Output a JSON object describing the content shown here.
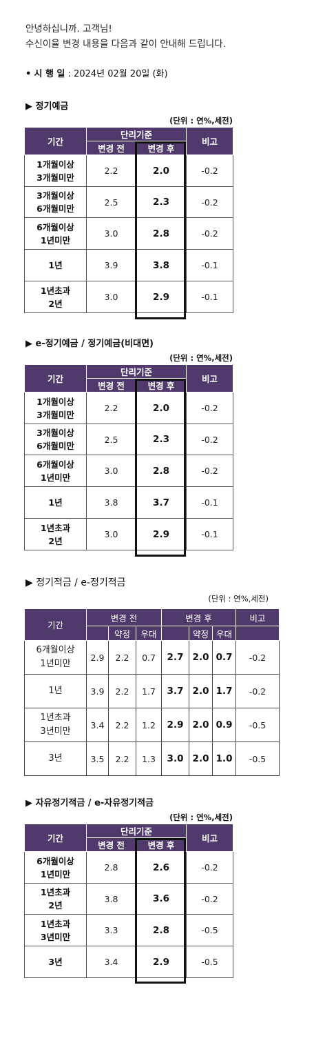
{
  "greeting": {
    "line1": "안녕하십니까. 고객님!",
    "line2": "수신이율 변경 내용을 다음과 같이 안내해 드립니다."
  },
  "effective_date": {
    "bullet": "•",
    "label": "시 행 일",
    "value": ": 2024년 02월 20일 (화)"
  },
  "common": {
    "period": "기간",
    "simple_rate": "단리기준",
    "before": "변경 전",
    "after": "변경 후",
    "diff": "비고",
    "unit": "(단위 : 연%,세전)",
    "agreed": "약정",
    "preferred": "우대"
  },
  "table1": {
    "title": "▶  정기예금",
    "rows": [
      {
        "period": [
          "1개월이상",
          "3개월미만"
        ],
        "before": "2.2",
        "after": "2.0",
        "diff": "-0.2"
      },
      {
        "period": [
          "3개월이상",
          "6개월미만"
        ],
        "before": "2.5",
        "after": "2.3",
        "diff": "-0.2"
      },
      {
        "period": [
          "6개월이상",
          "1년미만"
        ],
        "before": "3.0",
        "after": "2.8",
        "diff": "-0.2"
      },
      {
        "period": [
          "1년",
          ""
        ],
        "before": "3.9",
        "after": "3.8",
        "diff": "-0.1"
      },
      {
        "period": [
          "1년초과",
          "2년"
        ],
        "before": "3.0",
        "after": "2.9",
        "diff": "-0.1"
      }
    ]
  },
  "table2": {
    "title": "▶  e-정기예금 / 정기예금(비대면)",
    "rows": [
      {
        "period": [
          "1개월이상",
          "3개월미만"
        ],
        "before": "2.2",
        "after": "2.0",
        "diff": "-0.2"
      },
      {
        "period": [
          "3개월이상",
          "6개월미만"
        ],
        "before": "2.5",
        "after": "2.3",
        "diff": "-0.2"
      },
      {
        "period": [
          "6개월이상",
          "1년미만"
        ],
        "before": "3.0",
        "after": "2.8",
        "diff": "-0.2"
      },
      {
        "period": [
          "1년",
          ""
        ],
        "before": "3.8",
        "after": "3.7",
        "diff": "-0.1"
      },
      {
        "period": [
          "1년초과",
          "2년"
        ],
        "before": "3.0",
        "after": "2.9",
        "diff": "-0.1"
      }
    ]
  },
  "table3": {
    "title": "▶ 정기적금 / e-정기적금",
    "rows": [
      {
        "period": [
          "6개월이상",
          "1년미만"
        ],
        "b_total": "2.9",
        "b_agreed": "2.2",
        "b_pref": "0.7",
        "a_total": "2.7",
        "a_agreed": "2.0",
        "a_pref": "0.7",
        "diff": "-0.2"
      },
      {
        "period": [
          "1년",
          ""
        ],
        "b_total": "3.9",
        "b_agreed": "2.2",
        "b_pref": "1.7",
        "a_total": "3.7",
        "a_agreed": "2.0",
        "a_pref": "1.7",
        "diff": "-0.2"
      },
      {
        "period": [
          "1년초과",
          "3년미만"
        ],
        "b_total": "3.4",
        "b_agreed": "2.2",
        "b_pref": "1.2",
        "a_total": "2.9",
        "a_agreed": "2.0",
        "a_pref": "0.9",
        "diff": "-0.5"
      },
      {
        "period": [
          "3년",
          ""
        ],
        "b_total": "3.5",
        "b_agreed": "2.2",
        "b_pref": "1.3",
        "a_total": "3.0",
        "a_agreed": "2.0",
        "a_pref": "1.0",
        "diff": "-0.5"
      }
    ]
  },
  "table4": {
    "title": "▶ 자유정기적금 / e-자유정기적금",
    "rows": [
      {
        "period": [
          "6개월이상",
          "1년미만"
        ],
        "before": "2.8",
        "after": "2.6",
        "diff": "-0.2"
      },
      {
        "period": [
          "1년초과",
          "2년"
        ],
        "before": "3.8",
        "after": "3.6",
        "diff": "-0.2"
      },
      {
        "period": [
          "1년초과",
          "3년미만"
        ],
        "before": "3.3",
        "after": "2.8",
        "diff": "-0.5"
      },
      {
        "period": [
          "3년",
          ""
        ],
        "before": "3.4",
        "after": "2.9",
        "diff": "-0.5"
      }
    ]
  }
}
